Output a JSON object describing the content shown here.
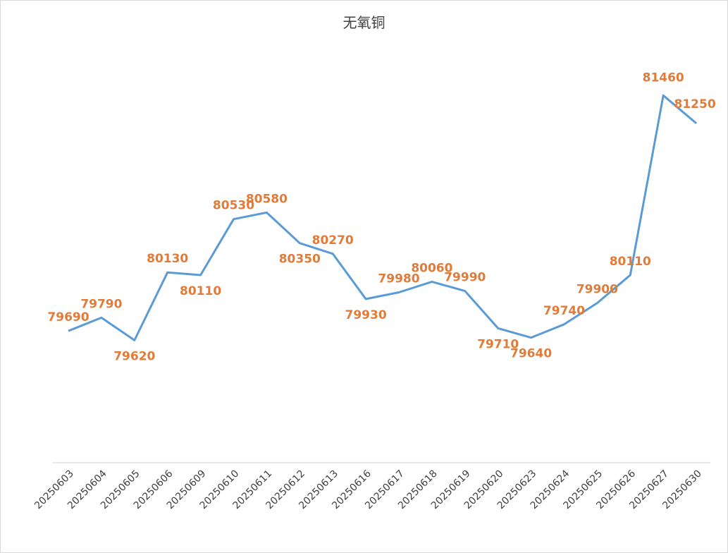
{
  "chart_data": {
    "type": "line",
    "title": "无氧铜",
    "xlabel": "",
    "ylabel": "",
    "categories": [
      "20250603",
      "20250604",
      "20250605",
      "20250606",
      "20250609",
      "20250610",
      "20250611",
      "20250612",
      "20250613",
      "20250616",
      "20250617",
      "20250618",
      "20250619",
      "20250620",
      "20250623",
      "20250624",
      "20250625",
      "20250626",
      "20250627",
      "20250630"
    ],
    "values": [
      79690,
      79790,
      79620,
      80130,
      80110,
      80530,
      80580,
      80350,
      80270,
      79930,
      79980,
      80060,
      79990,
      79710,
      79640,
      79740,
      79900,
      80110,
      81460,
      81250
    ],
    "ylim": [
      78700,
      81700
    ],
    "grid": false,
    "legend": "none",
    "colors": {
      "line": "#5b9bd5",
      "drop_line": "#c5dcef",
      "data_label": "#e07b39",
      "axis": "#d9d9d9"
    }
  }
}
